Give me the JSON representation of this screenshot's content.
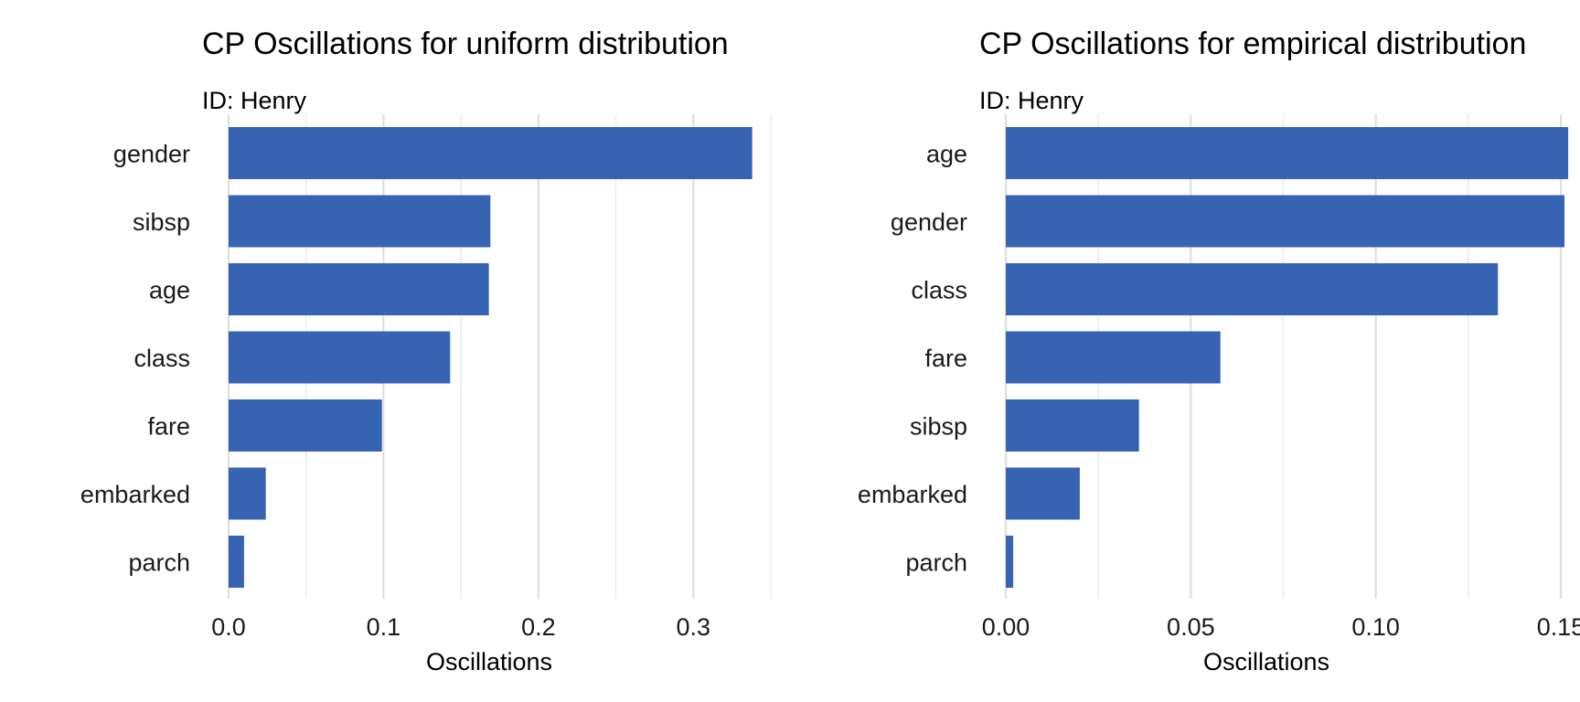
{
  "colors": {
    "bar": "#3764B2",
    "grid": "#dedede",
    "text": "#000000"
  },
  "chart_data": [
    {
      "type": "bar",
      "orientation": "horizontal",
      "title": "CP Oscillations for uniform distribution",
      "subtitle": "ID: Henry",
      "xlabel": "Oscillations",
      "ylabel": "",
      "xlim": [
        0,
        0.35
      ],
      "x_ticks": [
        0,
        0.1,
        0.2,
        0.3
      ],
      "x_tick_labels": [
        "0.0",
        "0.1",
        "0.2",
        "0.3"
      ],
      "categories": [
        "gender",
        "sibsp",
        "age",
        "class",
        "fare",
        "embarked",
        "parch"
      ],
      "values": [
        0.338,
        0.169,
        0.168,
        0.143,
        0.099,
        0.024,
        0.01
      ],
      "grid": true,
      "legend": "none"
    },
    {
      "type": "bar",
      "orientation": "horizontal",
      "title": "CP Oscillations for empirical distribution",
      "subtitle": "ID: Henry",
      "xlabel": "Oscillations",
      "ylabel": "",
      "xlim": [
        0,
        0.15
      ],
      "x_ticks": [
        0,
        0.05,
        0.1,
        0.15
      ],
      "x_tick_labels": [
        "0.00",
        "0.05",
        "0.10",
        "0.15"
      ],
      "categories": [
        "age",
        "gender",
        "class",
        "fare",
        "sibsp",
        "embarked",
        "parch"
      ],
      "values": [
        0.152,
        0.151,
        0.133,
        0.058,
        0.036,
        0.02,
        0.002
      ],
      "grid": true,
      "legend": "none"
    }
  ]
}
